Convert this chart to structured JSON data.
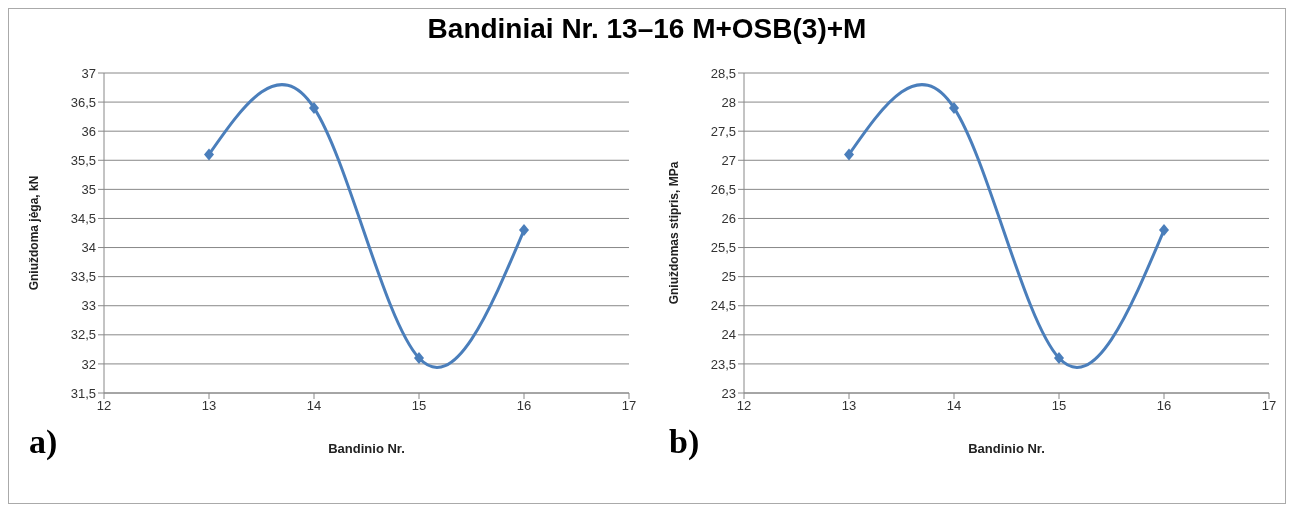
{
  "chart_data": [
    {
      "type": "line",
      "title": "Bandiniai Nr. 13–16 M+OSB(3)+M",
      "xlabel": "Bandinio Nr.",
      "ylabel": "Gniuždoma jėga, kN",
      "annotations": [
        "a)"
      ],
      "x": [
        13,
        14,
        15,
        16
      ],
      "series": [
        {
          "color": "#4a7ebb",
          "values": [
            35.6,
            36.4,
            32.1,
            34.3
          ]
        }
      ],
      "xlim": [
        12,
        17
      ],
      "xticks": [
        12,
        13,
        14,
        15,
        16,
        17
      ],
      "ylim": [
        31.5,
        37
      ],
      "yticks": [
        {
          "value": 31.5,
          "label": "31,5"
        },
        32,
        {
          "value": 32.5,
          "label": "32,5"
        },
        33,
        {
          "value": 33.5,
          "label": "33,5"
        },
        34,
        {
          "value": 34.5,
          "label": "34,5"
        },
        35,
        {
          "value": 35.5,
          "label": "35,5"
        },
        36,
        {
          "value": 36.5,
          "label": "36,5"
        },
        37
      ],
      "grid": "y",
      "marker": "diamond",
      "line_style": "solid",
      "legend": false
    },
    {
      "type": "line",
      "xlabel": "Bandinio Nr.",
      "ylabel": "Gniuždomas stipris, MPa",
      "annotations": [
        "b)"
      ],
      "x": [
        13,
        14,
        15,
        16
      ],
      "series": [
        {
          "color": "#4a7ebb",
          "values": [
            27.1,
            27.9,
            23.6,
            25.8
          ]
        }
      ],
      "xlim": [
        12,
        17
      ],
      "xticks": [
        12,
        13,
        14,
        15,
        16,
        17
      ],
      "ylim": [
        23,
        28.5
      ],
      "yticks": [
        23,
        {
          "value": 23.5,
          "label": "23,5"
        },
        24,
        {
          "value": 24.5,
          "label": "24,5"
        },
        25,
        {
          "value": 25.5,
          "label": "25,5"
        },
        26,
        {
          "value": 26.5,
          "label": "26,5"
        },
        27,
        {
          "value": 27.5,
          "label": "27,5"
        },
        28,
        {
          "value": 28.5,
          "label": "28,5"
        }
      ],
      "grid": "y",
      "marker": "diamond",
      "line_style": "solid",
      "legend": false
    }
  ]
}
